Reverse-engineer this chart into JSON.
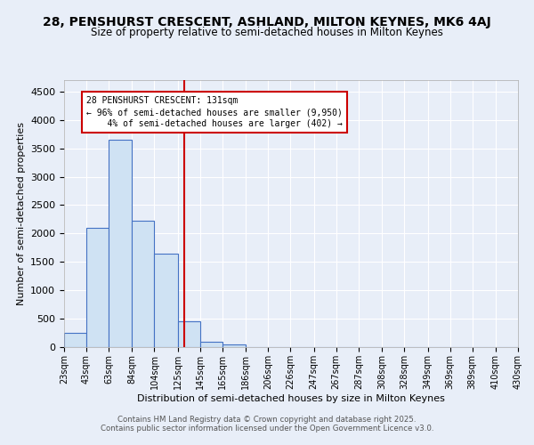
{
  "title_line1": "28, PENSHURST CRESCENT, ASHLAND, MILTON KEYNES, MK6 4AJ",
  "title_line2": "Size of property relative to semi-detached houses in Milton Keynes",
  "xlabel": "Distribution of semi-detached houses by size in Milton Keynes",
  "ylabel": "Number of semi-detached properties",
  "footnote1": "Contains HM Land Registry data © Crown copyright and database right 2025.",
  "footnote2": "Contains public sector information licensed under the Open Government Licence v3.0.",
  "bin_edges": [
    23,
    43,
    63,
    84,
    104,
    125,
    145,
    165,
    186,
    206,
    226,
    247,
    267,
    287,
    308,
    328,
    349,
    369,
    389,
    410,
    430
  ],
  "bin_labels": [
    "23sqm",
    "43sqm",
    "63sqm",
    "84sqm",
    "104sqm",
    "125sqm",
    "145sqm",
    "165sqm",
    "186sqm",
    "206sqm",
    "226sqm",
    "247sqm",
    "267sqm",
    "287sqm",
    "308sqm",
    "328sqm",
    "349sqm",
    "369sqm",
    "389sqm",
    "410sqm",
    "430sqm"
  ],
  "counts": [
    250,
    2100,
    3650,
    2230,
    1640,
    450,
    100,
    45,
    0,
    0,
    0,
    0,
    0,
    0,
    0,
    0,
    0,
    0,
    0,
    0
  ],
  "bar_facecolor": "#cfe2f3",
  "bar_edgecolor": "#4472c4",
  "background_color": "#e8eef8",
  "plot_bg_color": "#e8eef8",
  "grid_color": "#ffffff",
  "vline_x": 131,
  "vline_color": "#cc0000",
  "annotation_line1": "28 PENSHURST CRESCENT: 131sqm",
  "annotation_line2": "← 96% of semi-detached houses are smaller (9,950)",
  "annotation_line3": "    4% of semi-detached houses are larger (402) →",
  "annotation_box_edgecolor": "#cc0000",
  "annotation_box_facecolor": "#ffffff",
  "ylim": [
    0,
    4700
  ],
  "yticks": [
    0,
    500,
    1000,
    1500,
    2000,
    2500,
    3000,
    3500,
    4000,
    4500
  ]
}
